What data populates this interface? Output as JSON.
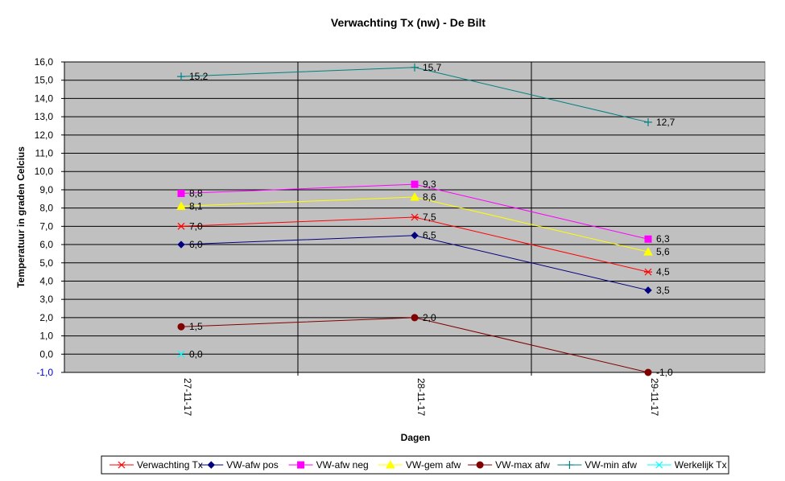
{
  "chart_data": {
    "type": "line",
    "title": "Verwachting Tx (nw) - De Bilt",
    "xlabel": "Dagen",
    "ylabel": "Temperatuur in graden Celcius",
    "categories": [
      "27-11-17",
      "28-11-17",
      "29-11-17"
    ],
    "ylim": [
      -1,
      16
    ],
    "yticks": [
      "-1,0",
      "0,0",
      "1,0",
      "2,0",
      "3,0",
      "4,0",
      "5,0",
      "6,0",
      "7,0",
      "8,0",
      "9,0",
      "10,0",
      "11,0",
      "12,0",
      "13,0",
      "14,0",
      "15,0",
      "16,0"
    ],
    "grid": true,
    "plot_background": "#c0c0c0",
    "legend_position": "bottom",
    "series": [
      {
        "name": "Verwachting Tx",
        "color": "#ff0000",
        "marker": "asterisk",
        "values": [
          7.0,
          7.5,
          4.5
        ],
        "labels": [
          "7,0",
          "7,5",
          "4,5"
        ]
      },
      {
        "name": "VW-afw pos",
        "color": "#000080",
        "marker": "diamond",
        "values": [
          6.0,
          6.5,
          3.5
        ],
        "labels": [
          "6,0",
          "6,5",
          "3,5"
        ]
      },
      {
        "name": "VW-afw neg",
        "color": "#ff00ff",
        "marker": "square",
        "values": [
          8.8,
          9.3,
          6.3
        ],
        "labels": [
          "8,8",
          "9,3",
          "6,3"
        ]
      },
      {
        "name": "VW-gem afw",
        "color": "#ffff00",
        "marker": "triangle",
        "values": [
          8.1,
          8.6,
          5.6
        ],
        "labels": [
          "8,1",
          "8,6",
          "5,6"
        ]
      },
      {
        "name": "VW-max afw",
        "color": "#800000",
        "marker": "circle",
        "values": [
          1.5,
          2.0,
          -1.0
        ],
        "labels": [
          "1,5",
          "2,0",
          "-1,0"
        ]
      },
      {
        "name": "VW-min afw",
        "color": "#008080",
        "marker": "plus",
        "values": [
          15.2,
          15.7,
          12.7
        ],
        "labels": [
          "15,2",
          "15,7",
          "12,7"
        ]
      },
      {
        "name": "Werkelijk Tx",
        "color": "#00ffff",
        "marker": "x",
        "values": [
          0.0,
          null,
          null
        ],
        "labels": [
          "0,0",
          null,
          null
        ]
      }
    ]
  }
}
